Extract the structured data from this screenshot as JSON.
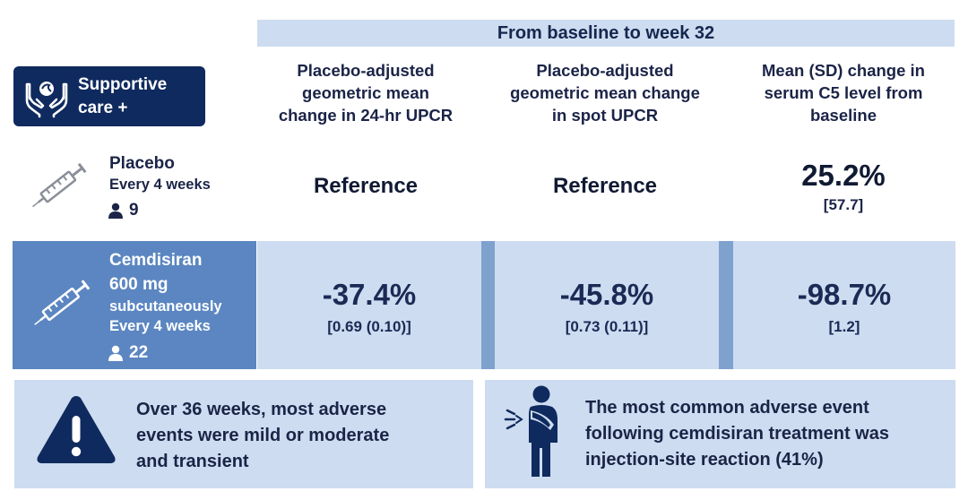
{
  "header": {
    "timeframe": "From baseline to week 32"
  },
  "badge": {
    "label_line1": "Supportive",
    "label_line2": "care +",
    "icon": "hands-care-icon"
  },
  "columns": [
    {
      "line1": "Placebo-adjusted",
      "line2": "geometric mean",
      "line3": "change in 24-hr UPCR"
    },
    {
      "line1": "Placebo-adjusted",
      "line2": "geometric mean change",
      "line3": "in spot UPCR"
    },
    {
      "line1": "Mean (SD) change in",
      "line2": "serum C5 level from",
      "line3": "baseline"
    }
  ],
  "placebo": {
    "name": "Placebo",
    "frequency": "Every 4 weeks",
    "n": "9",
    "values": [
      "Reference",
      "Reference"
    ],
    "c5_change": "25.2%",
    "c5_sd": "[57.7]",
    "icon": "syringe-icon"
  },
  "cemdisiran": {
    "name": "Cemdisiran",
    "dose": "600 mg",
    "route": "subcutaneously",
    "frequency": "Every 4 weeks",
    "n": "22",
    "results": [
      {
        "value": "-37.4%",
        "detail": "[0.69 (0.10)]"
      },
      {
        "value": "-45.8%",
        "detail": "[0.73 (0.11)]"
      },
      {
        "value": "-98.7%",
        "detail": "[1.2]"
      }
    ],
    "icon": "syringe-icon"
  },
  "findings": {
    "adverse_events": {
      "line1": "Over 36 weeks, most adverse",
      "line2": "events were mild or moderate",
      "line3": "and transient",
      "icon": "warning-icon"
    },
    "common_event": {
      "line1": "The most common adverse event",
      "line2": "following cemdisiran treatment was",
      "line3": "injection-site reaction (41%)",
      "icon": "arm-pain-person-icon"
    }
  },
  "colors": {
    "navy": "#0f2a5e",
    "light_blue": "#cddcf0",
    "mid_blue": "#5b86c1",
    "separator_blue": "#7fa1ce"
  }
}
